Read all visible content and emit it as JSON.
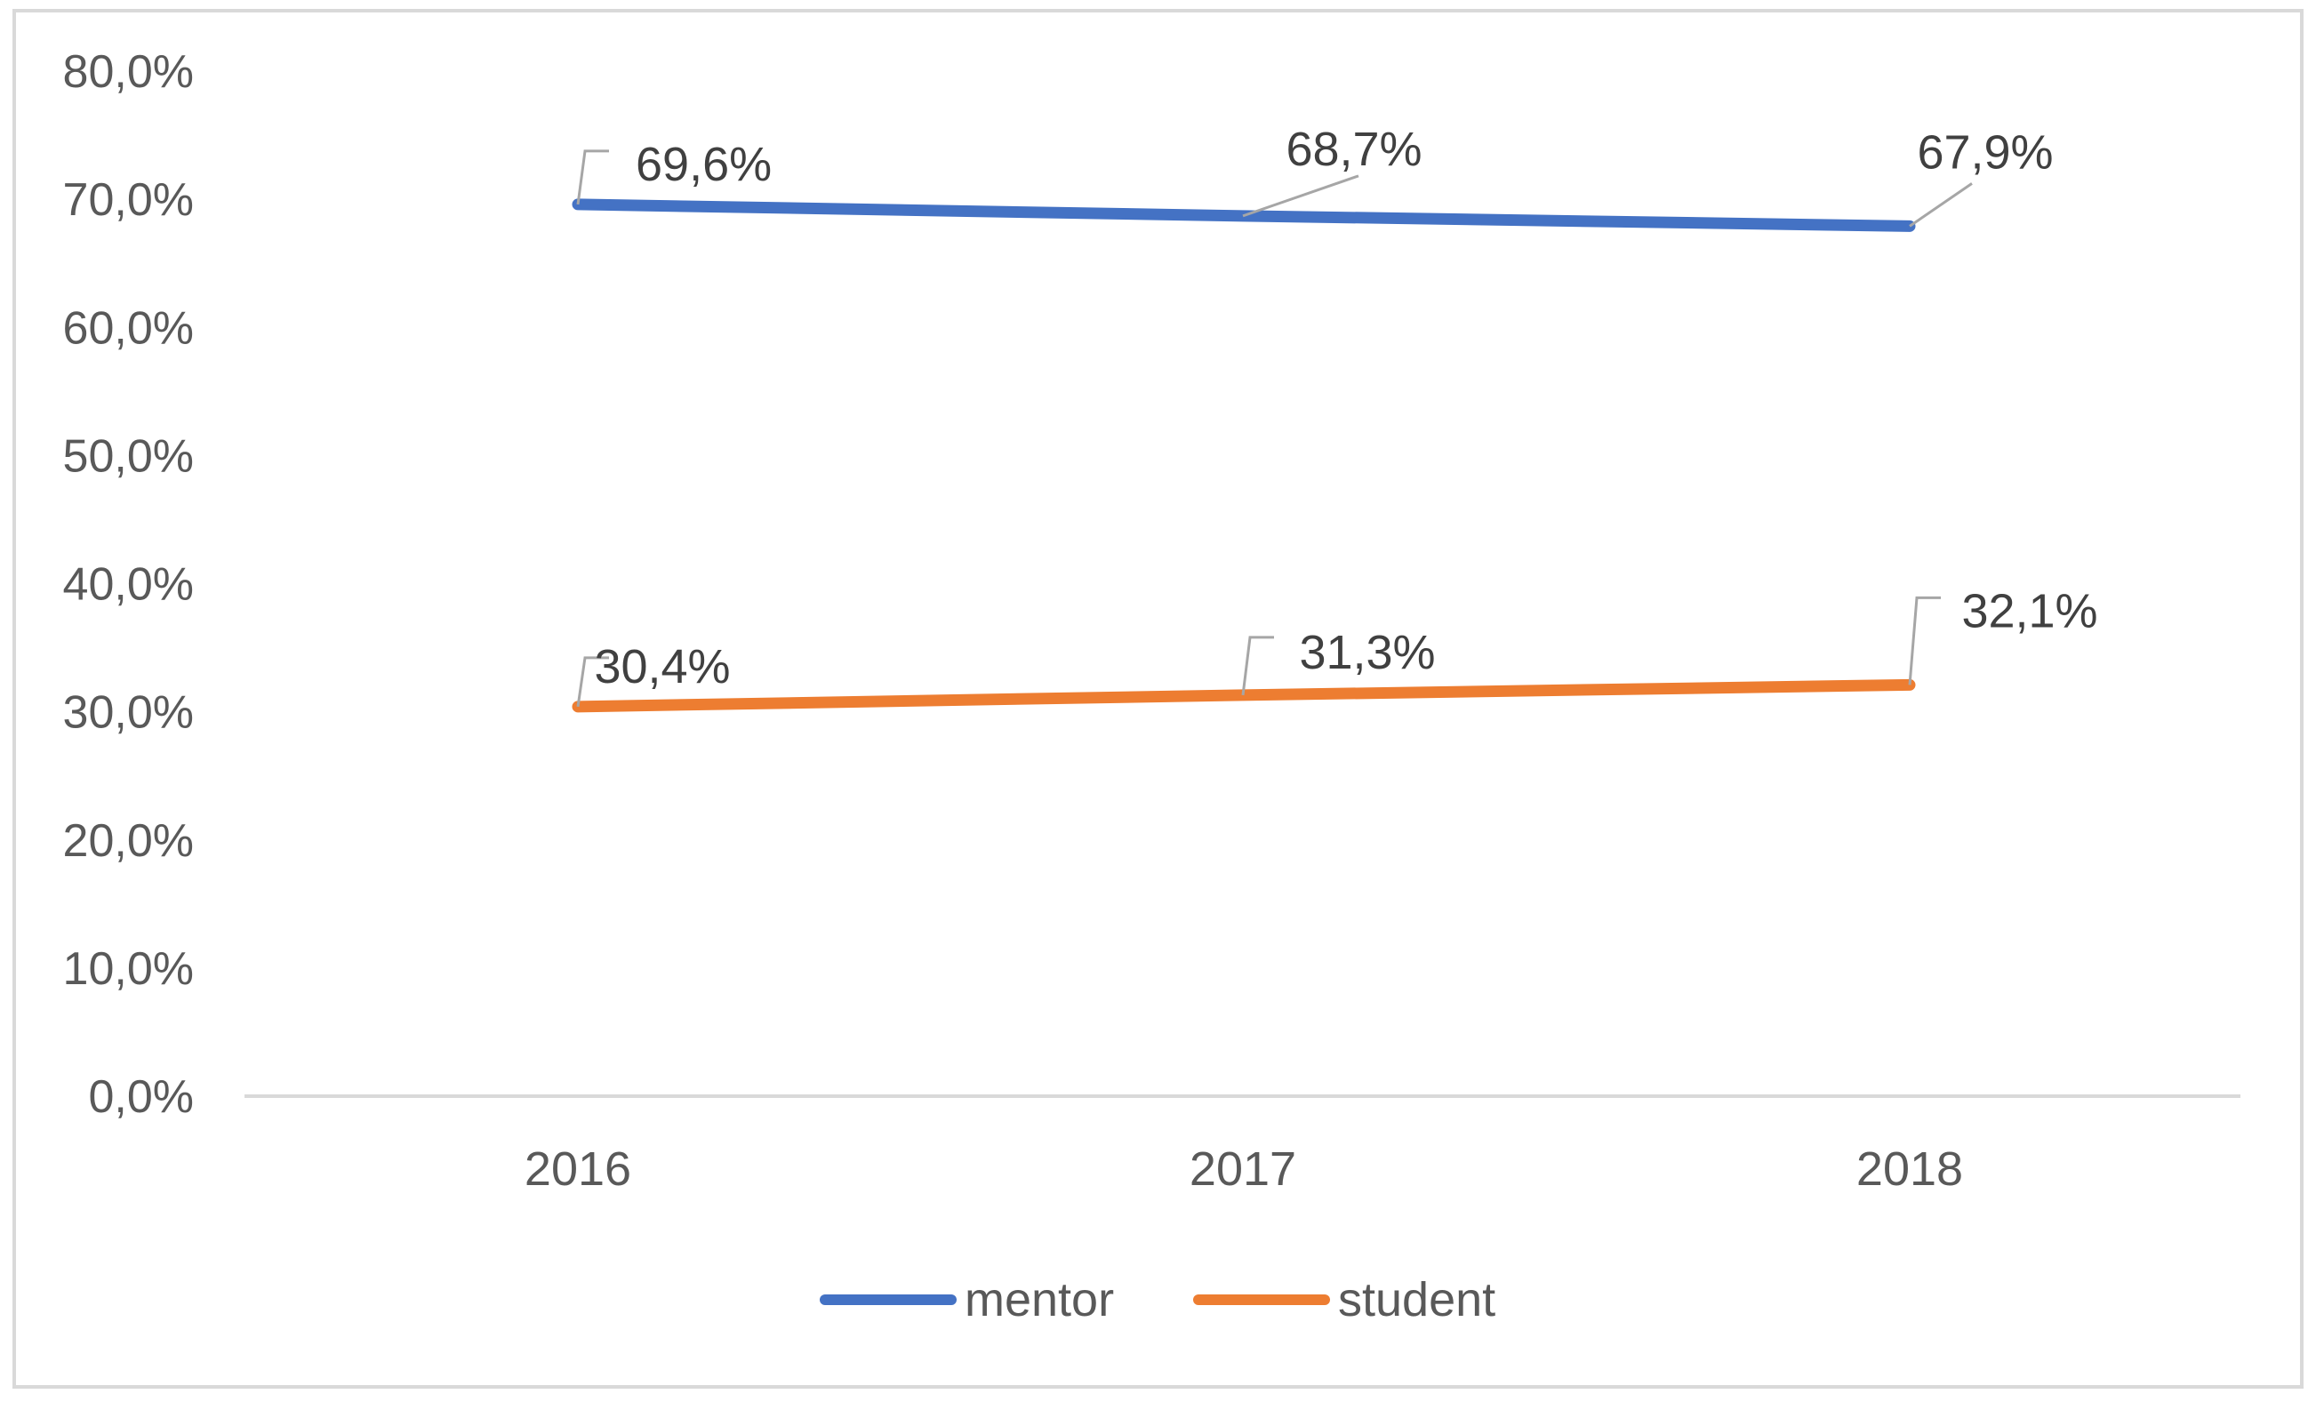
{
  "chart_data": {
    "type": "line",
    "categories": [
      "2016",
      "2017",
      "2018"
    ],
    "series": [
      {
        "name": "mentor",
        "values": [
          69.6,
          68.7,
          67.9
        ],
        "labels": [
          "69,6%",
          "68,7%",
          "67,9%"
        ],
        "color": "#4472C4"
      },
      {
        "name": "student",
        "values": [
          30.4,
          31.3,
          32.1
        ],
        "labels": [
          "30,4%",
          "31,3%",
          "32,1%"
        ],
        "color": "#ED7D31"
      }
    ],
    "y_ticks": [
      "0,0%",
      "10,0%",
      "20,0%",
      "30,0%",
      "40,0%",
      "50,0%",
      "60,0%",
      "70,0%",
      "80,0%"
    ],
    "ylim": [
      0,
      80
    ],
    "xlabel": "",
    "ylabel": "",
    "grid": false,
    "legend_position": "bottom",
    "border_color": "#D9D9D9",
    "axis_color": "#D9D9D9",
    "leader_line_color": "#A6A6A6"
  }
}
